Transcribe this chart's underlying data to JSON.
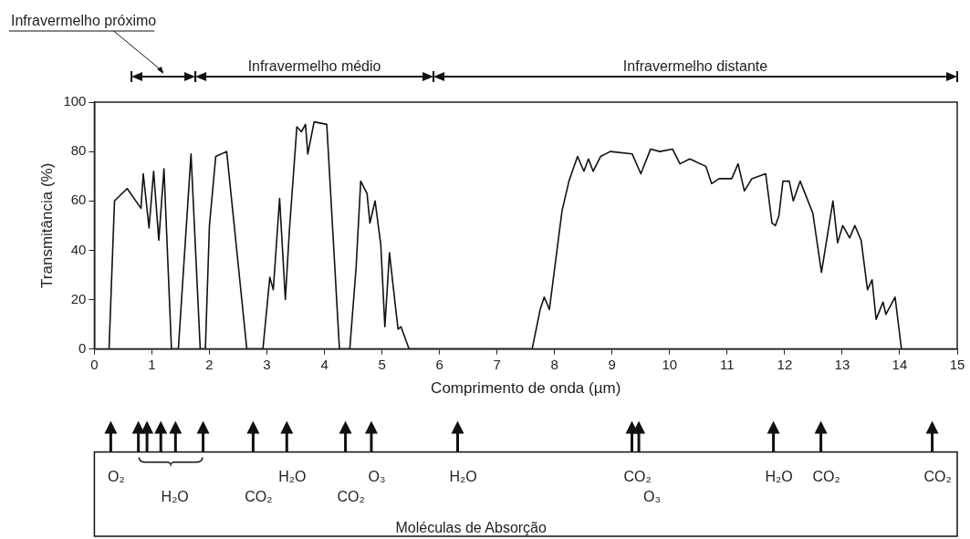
{
  "chart_data": {
    "type": "line",
    "xlabel": "Comprimento de onda (µm)",
    "ylabel": "Transmitância (%)",
    "x": [
      0.255,
      0.35,
      0.57,
      0.81,
      0.85,
      0.95,
      1.03,
      1.12,
      1.21,
      1.34,
      1.46,
      1.68,
      1.84,
      1.93,
      2.0,
      2.11,
      2.3,
      2.65,
      2.93,
      3.05,
      3.11,
      3.22,
      3.32,
      3.39,
      3.52,
      3.6,
      3.67,
      3.71,
      3.82,
      4.04,
      4.26,
      4.44,
      4.55,
      4.63,
      4.74,
      4.79,
      4.88,
      4.98,
      5.05,
      5.13,
      5.23,
      5.28,
      5.33,
      5.47,
      7.61,
      7.75,
      7.82,
      7.91,
      8.13,
      8.25,
      8.4,
      8.51,
      8.59,
      8.67,
      8.8,
      8.97,
      9.35,
      9.5,
      9.67,
      9.83,
      10.05,
      10.18,
      10.35,
      10.63,
      10.73,
      10.86,
      11.08,
      11.19,
      11.3,
      11.43,
      11.67,
      11.78,
      11.84,
      11.9,
      11.97,
      12.08,
      12.15,
      12.27,
      12.49,
      12.64,
      12.84,
      12.92,
      13.01,
      13.13,
      13.22,
      13.33,
      13.44,
      13.52,
      13.59,
      13.71,
      13.76,
      13.92,
      14.03
    ],
    "series": [
      {
        "color": "#111111",
        "values": [
          0,
          60,
          65,
          57,
          71,
          49,
          72,
          44,
          73,
          0,
          0,
          79,
          0,
          0,
          50,
          78,
          80,
          0,
          0,
          29,
          24,
          61,
          20,
          48,
          90,
          88,
          91,
          79,
          92,
          91,
          0,
          0,
          33,
          68,
          63,
          51,
          60,
          42,
          9,
          39,
          18,
          8,
          9,
          0,
          0,
          16,
          21,
          16,
          56,
          68,
          78,
          72,
          77,
          72,
          78,
          80,
          79,
          71,
          81,
          80,
          81,
          75,
          77,
          74,
          67,
          69,
          69,
          75,
          64,
          69,
          71,
          51,
          50,
          54,
          68,
          68,
          60,
          68,
          55,
          31,
          60,
          43,
          50,
          45,
          50,
          44,
          24,
          28,
          12,
          19,
          14,
          21,
          0
        ]
      }
    ],
    "xlim": [
      0,
      15
    ],
    "xticks": [
      0,
      1,
      2,
      3,
      4,
      5,
      6,
      7,
      8,
      9,
      10,
      11,
      12,
      13,
      14,
      15
    ],
    "ylim": [
      0,
      100
    ],
    "yticks": [
      0,
      20,
      40,
      60,
      80,
      100
    ],
    "grid": false,
    "legend": false,
    "marker": "none",
    "line_style": "solid",
    "annotations": [
      "O₂",
      "H₂O",
      "CO₂",
      "H₂O",
      "CO₂",
      "O₃",
      "H₂O",
      "CO₂",
      "O₃",
      "H₂O",
      "CO₂",
      "CO₂",
      "Moléculas de Absorção",
      "Infravermelho próximo",
      "Infravermelho médio",
      "Infravermelho distante"
    ]
  }
}
